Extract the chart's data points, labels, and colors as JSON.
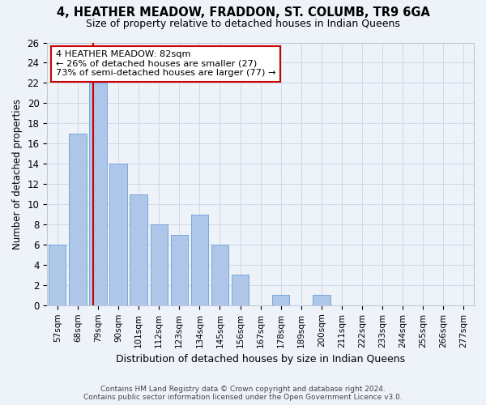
{
  "title1": "4, HEATHER MEADOW, FRADDON, ST. COLUMB, TR9 6GA",
  "title2": "Size of property relative to detached houses in Indian Queens",
  "xlabel": "Distribution of detached houses by size in Indian Queens",
  "ylabel": "Number of detached properties",
  "categories": [
    "57sqm",
    "68sqm",
    "79sqm",
    "90sqm",
    "101sqm",
    "112sqm",
    "123sqm",
    "134sqm",
    "145sqm",
    "156sqm",
    "167sqm",
    "178sqm",
    "189sqm",
    "200sqm",
    "211sqm",
    "222sqm",
    "233sqm",
    "244sqm",
    "255sqm",
    "266sqm",
    "277sqm"
  ],
  "values": [
    6,
    17,
    22,
    14,
    11,
    8,
    7,
    9,
    6,
    3,
    0,
    1,
    0,
    1,
    0,
    0,
    0,
    0,
    0,
    0,
    0
  ],
  "bar_color": "#aec6e8",
  "bar_edge_color": "#6a9fd8",
  "grid_color": "#d0d8ea",
  "annotation_box_facecolor": "#ffffff",
  "annotation_border_color": "#cc0000",
  "vline_color": "#cc0000",
  "annotation_text_line1": "4 HEATHER MEADOW: 82sqm",
  "annotation_text_line2": "← 26% of detached houses are smaller (27)",
  "annotation_text_line3": "73% of semi-detached houses are larger (77) →",
  "footer1": "Contains HM Land Registry data © Crown copyright and database right 2024.",
  "footer2": "Contains public sector information licensed under the Open Government Licence v3.0.",
  "ylim_max": 26,
  "yticks": [
    0,
    2,
    4,
    6,
    8,
    10,
    12,
    14,
    16,
    18,
    20,
    22,
    24,
    26
  ],
  "background_color": "#eef2f9"
}
